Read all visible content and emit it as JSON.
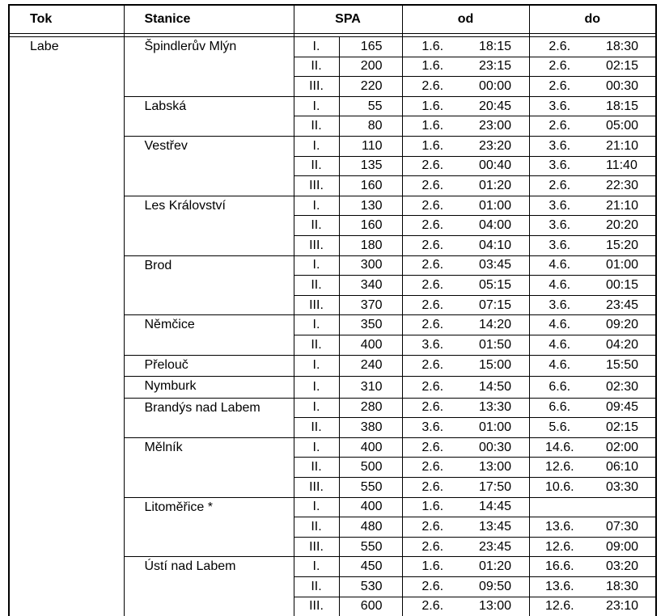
{
  "headers": {
    "tok": "Tok",
    "stanice": "Stanice",
    "spa": "SPA",
    "od": "od",
    "do": "do"
  },
  "tok": "Labe",
  "stations": [
    {
      "name": "Špindlerův Mlýn",
      "rows": [
        {
          "spa": "I.",
          "value": "165",
          "od_date": "1.6.",
          "od_time": "18:15",
          "do_date": "2.6.",
          "do_time": "18:30"
        },
        {
          "spa": "II.",
          "value": "200",
          "od_date": "1.6.",
          "od_time": "23:15",
          "do_date": "2.6.",
          "do_time": "02:15"
        },
        {
          "spa": "III.",
          "value": "220",
          "od_date": "2.6.",
          "od_time": "00:00",
          "do_date": "2.6.",
          "do_time": "00:30"
        }
      ]
    },
    {
      "name": "Labská",
      "rows": [
        {
          "spa": "I.",
          "value": "55",
          "od_date": "1.6.",
          "od_time": "20:45",
          "do_date": "3.6.",
          "do_time": "18:15"
        },
        {
          "spa": "II.",
          "value": "80",
          "od_date": "1.6.",
          "od_time": "23:00",
          "do_date": "2.6.",
          "do_time": "05:00"
        }
      ]
    },
    {
      "name": "Vestřev",
      "rows": [
        {
          "spa": "I.",
          "value": "110",
          "od_date": "1.6.",
          "od_time": "23:20",
          "do_date": "3.6.",
          "do_time": "21:10"
        },
        {
          "spa": "II.",
          "value": "135",
          "od_date": "2.6.",
          "od_time": "00:40",
          "do_date": "3.6.",
          "do_time": "11:40"
        },
        {
          "spa": "III.",
          "value": "160",
          "od_date": "2.6.",
          "od_time": "01:20",
          "do_date": "2.6.",
          "do_time": "22:30"
        }
      ]
    },
    {
      "name": "Les Království",
      "rows": [
        {
          "spa": "I.",
          "value": "130",
          "od_date": "2.6.",
          "od_time": "01:00",
          "do_date": "3.6.",
          "do_time": "21:10"
        },
        {
          "spa": "II.",
          "value": "160",
          "od_date": "2.6.",
          "od_time": "04:00",
          "do_date": "3.6.",
          "do_time": "20:20"
        },
        {
          "spa": "III.",
          "value": "180",
          "od_date": "2.6.",
          "od_time": "04:10",
          "do_date": "3.6.",
          "do_time": "15:20"
        }
      ]
    },
    {
      "name": "Brod",
      "rows": [
        {
          "spa": "I.",
          "value": "300",
          "od_date": "2.6.",
          "od_time": "03:45",
          "do_date": "4.6.",
          "do_time": "01:00"
        },
        {
          "spa": "II.",
          "value": "340",
          "od_date": "2.6.",
          "od_time": "05:15",
          "do_date": "4.6.",
          "do_time": "00:15"
        },
        {
          "spa": "III.",
          "value": "370",
          "od_date": "2.6.",
          "od_time": "07:15",
          "do_date": "3.6.",
          "do_time": "23:45"
        }
      ]
    },
    {
      "name": "Němčice",
      "rows": [
        {
          "spa": "I.",
          "value": "350",
          "od_date": "2.6.",
          "od_time": "14:20",
          "do_date": "4.6.",
          "do_time": "09:20"
        },
        {
          "spa": "II.",
          "value": "400",
          "od_date": "3.6.",
          "od_time": "01:50",
          "do_date": "4.6.",
          "do_time": "04:20"
        }
      ]
    },
    {
      "name": "Přelouč",
      "rows": [
        {
          "spa": "I.",
          "value": "240",
          "od_date": "2.6.",
          "od_time": "15:00",
          "do_date": "4.6.",
          "do_time": "15:50"
        }
      ]
    },
    {
      "name": "Nymburk",
      "rows": [
        {
          "spa": "I.",
          "value": "310",
          "od_date": "2.6.",
          "od_time": "14:50",
          "do_date": "6.6.",
          "do_time": "02:30"
        }
      ]
    },
    {
      "name": "Brandýs nad Labem",
      "rows": [
        {
          "spa": "I.",
          "value": "280",
          "od_date": "2.6.",
          "od_time": "13:30",
          "do_date": "6.6.",
          "do_time": "09:45"
        },
        {
          "spa": "II.",
          "value": "380",
          "od_date": "3.6.",
          "od_time": "01:00",
          "do_date": "5.6.",
          "do_time": "02:15"
        }
      ]
    },
    {
      "name": "Mělník",
      "rows": [
        {
          "spa": "I.",
          "value": "400",
          "od_date": "2.6.",
          "od_time": "00:30",
          "do_date": "14.6.",
          "do_time": "02:00"
        },
        {
          "spa": "II.",
          "value": "500",
          "od_date": "2.6.",
          "od_time": "13:00",
          "do_date": "12.6.",
          "do_time": "06:10"
        },
        {
          "spa": "III.",
          "value": "550",
          "od_date": "2.6.",
          "od_time": "17:50",
          "do_date": "10.6.",
          "do_time": "03:30"
        }
      ]
    },
    {
      "name": "Litoměřice *",
      "rows": [
        {
          "spa": "I.",
          "value": "400",
          "od_date": "1.6.",
          "od_time": "14:45",
          "do_date": "",
          "do_time": ""
        },
        {
          "spa": "II.",
          "value": "480",
          "od_date": "2.6.",
          "od_time": "13:45",
          "do_date": "13.6.",
          "do_time": "07:30"
        },
        {
          "spa": "III.",
          "value": "550",
          "od_date": "2.6.",
          "od_time": "23:45",
          "do_date": "12.6.",
          "do_time": "09:00"
        }
      ]
    },
    {
      "name": "Ústí nad Labem",
      "rows": [
        {
          "spa": "I.",
          "value": "450",
          "od_date": "1.6.",
          "od_time": "01:20",
          "do_date": "16.6.",
          "do_time": "03:20"
        },
        {
          "spa": "II.",
          "value": "530",
          "od_date": "2.6.",
          "od_time": "09:50",
          "do_date": "13.6.",
          "do_time": "18:30"
        },
        {
          "spa": "III.",
          "value": "600",
          "od_date": "2.6.",
          "od_time": "13:00",
          "do_date": "12.6.",
          "do_time": "23:10"
        }
      ]
    }
  ]
}
